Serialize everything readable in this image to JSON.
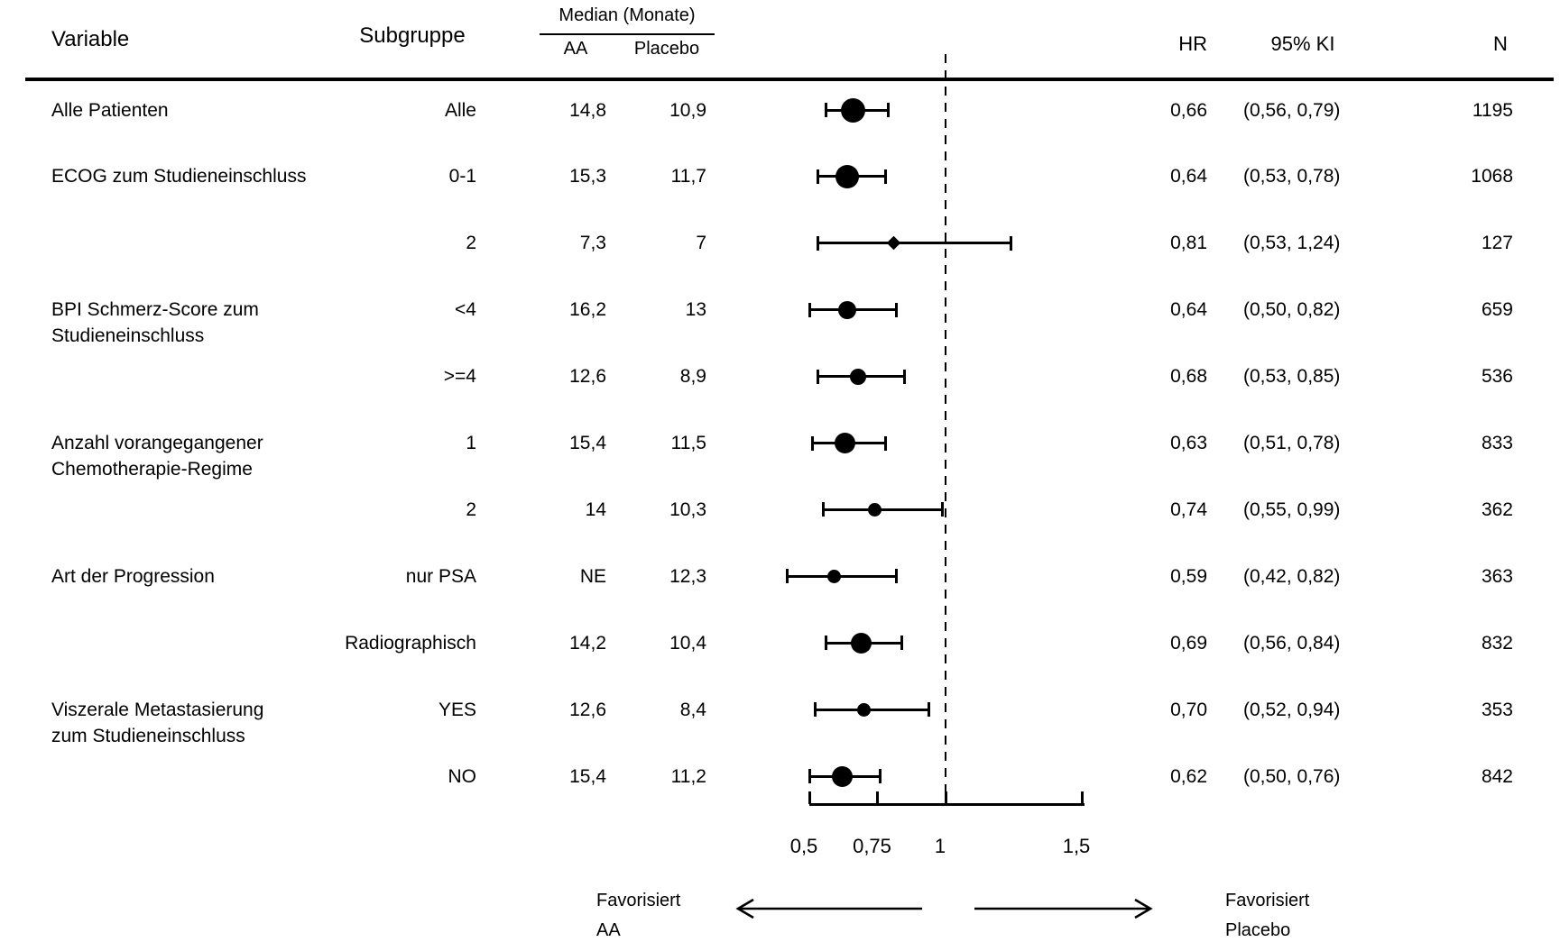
{
  "header": {
    "variable": "Variable",
    "subgroup": "Subgruppe",
    "median_group": "Median (Monate)",
    "median_aa": "AA",
    "median_placebo": "Placebo",
    "hr": "HR",
    "ci": "95% KI",
    "n": "N"
  },
  "footer": {
    "favor_left": "Favorisiert\nAA",
    "favor_right": "Favorisiert\nPlacebo"
  },
  "chart_data": {
    "type": "scatter",
    "subtype": "forest-plot",
    "xlabel": "",
    "x_axis": {
      "min": 0.5,
      "max": 1.5,
      "reference_line": 1.0,
      "tick_values": [
        0.5,
        0.75,
        1.0,
        1.5
      ],
      "tick_labels": [
        "0,5",
        "0,75",
        "1",
        "1,5"
      ]
    },
    "rows": [
      {
        "variable": "Alle Patienten",
        "subgroup": "Alle",
        "median_aa": "14,8",
        "median_placebo": "10,9",
        "hr": 0.66,
        "ci_low": 0.56,
        "ci_high": 0.79,
        "hr_label": "0,66",
        "ci_label": "(0,56, 0,79)",
        "n": 1195
      },
      {
        "variable": "ECOG zum Studieneinschluss",
        "subgroup": "0-1",
        "median_aa": "15,3",
        "median_placebo": "11,7",
        "hr": 0.64,
        "ci_low": 0.53,
        "ci_high": 0.78,
        "hr_label": "0,64",
        "ci_label": "(0,53, 0,78)",
        "n": 1068
      },
      {
        "variable": "",
        "subgroup": "2",
        "median_aa": "7,3",
        "median_placebo": "7",
        "hr": 0.81,
        "ci_low": 0.53,
        "ci_high": 1.24,
        "hr_label": "0,81",
        "ci_label": "(0,53, 1,24)",
        "n": 127
      },
      {
        "variable": "BPI Schmerz-Score zum\nStudieneinschluss",
        "subgroup": "<4",
        "median_aa": "16,2",
        "median_placebo": "13",
        "hr": 0.64,
        "ci_low": 0.5,
        "ci_high": 0.82,
        "hr_label": "0,64",
        "ci_label": "(0,50, 0,82)",
        "n": 659
      },
      {
        "variable": "",
        "subgroup": ">=4",
        "median_aa": "12,6",
        "median_placebo": "8,9",
        "hr": 0.68,
        "ci_low": 0.53,
        "ci_high": 0.85,
        "hr_label": "0,68",
        "ci_label": "(0,53, 0,85)",
        "n": 536
      },
      {
        "variable": "Anzahl vorangegangener\nChemotherapie-Regime",
        "subgroup": "1",
        "median_aa": "15,4",
        "median_placebo": "11,5",
        "hr": 0.63,
        "ci_low": 0.51,
        "ci_high": 0.78,
        "hr_label": "0,63",
        "ci_label": "(0,51, 0,78)",
        "n": 833
      },
      {
        "variable": "",
        "subgroup": "2",
        "median_aa": "14",
        "median_placebo": "10,3",
        "hr": 0.74,
        "ci_low": 0.55,
        "ci_high": 0.99,
        "hr_label": "0,74",
        "ci_label": "(0,55, 0,99)",
        "n": 362
      },
      {
        "variable": "Art der Progression",
        "subgroup": "nur PSA",
        "median_aa": "NE",
        "median_placebo": "12,3",
        "hr": 0.59,
        "ci_low": 0.42,
        "ci_high": 0.82,
        "hr_label": "0,59",
        "ci_label": "(0,42, 0,82)",
        "n": 363
      },
      {
        "variable": "",
        "subgroup": "Radiographisch",
        "median_aa": "14,2",
        "median_placebo": "10,4",
        "hr": 0.69,
        "ci_low": 0.56,
        "ci_high": 0.84,
        "hr_label": "0,69",
        "ci_label": "(0,56, 0,84)",
        "n": 832
      },
      {
        "variable": "Viszerale Metastasierung\nzum Studieneinschluss",
        "subgroup": "YES",
        "median_aa": "12,6",
        "median_placebo": "8,4",
        "hr": 0.7,
        "ci_low": 0.52,
        "ci_high": 0.94,
        "hr_label": "0,70",
        "ci_label": "(0,52, 0,94)",
        "n": 353
      },
      {
        "variable": "",
        "subgroup": "NO",
        "median_aa": "15,4",
        "median_placebo": "11,2",
        "hr": 0.62,
        "ci_low": 0.5,
        "ci_high": 0.76,
        "hr_label": "0,62",
        "ci_label": "(0,50, 0,76)",
        "n": 842
      }
    ]
  }
}
